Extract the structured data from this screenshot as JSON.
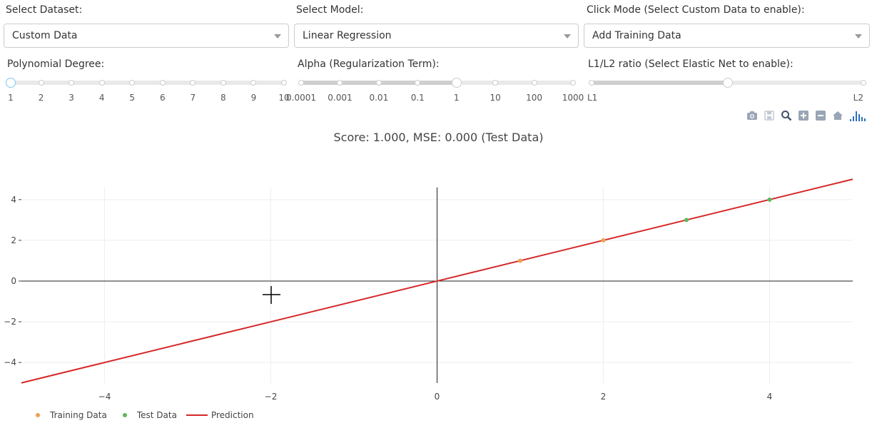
{
  "controls": {
    "dataset": {
      "label": "Select Dataset:",
      "value": "Custom Data"
    },
    "model": {
      "label": "Select Model:",
      "value": "Linear Regression"
    },
    "click_mode": {
      "label": "Click Mode (Select Custom Data to enable):",
      "value": "Add Training Data"
    }
  },
  "sliders": {
    "degree": {
      "label": "Polynomial Degree:",
      "marks": [
        "1",
        "2",
        "3",
        "4",
        "5",
        "6",
        "7",
        "8",
        "9",
        "10"
      ],
      "value_index": 0
    },
    "alpha": {
      "label": "Alpha (Regularization Term):",
      "marks": [
        "0.0001",
        "0.001",
        "0.01",
        "0.1",
        "1",
        "10",
        "100",
        "1000"
      ],
      "value_index": 4
    },
    "l1l2": {
      "label": "L1/L2 ratio (Select Elastic Net to enable):",
      "marks": [
        "L1",
        "L2"
      ],
      "value_fraction": 0.5
    }
  },
  "toolbar": {
    "icons": [
      "camera-icon",
      "save-icon",
      "zoom-icon",
      "zoom-in-icon",
      "zoom-out-icon",
      "home-icon",
      "plotly-logo-icon"
    ]
  },
  "score_text": "Score: 1.000, MSE: 0.000 (Test Data)",
  "legend": {
    "training": "Training Data",
    "test": "Test Data",
    "prediction": "Prediction"
  },
  "colors": {
    "training": "#f0a050",
    "test": "#5cb85c",
    "prediction": "#d62728",
    "accent": "#2f6fbf"
  },
  "chart_data": {
    "type": "scatter",
    "title": "",
    "xlabel": "",
    "ylabel": "",
    "xlim": [
      -5,
      5
    ],
    "ylim": [
      -5.5,
      5.5
    ],
    "x_ticks": [
      -4,
      -2,
      0,
      2,
      4
    ],
    "y_ticks": [
      -4,
      -2,
      0,
      2,
      4
    ],
    "grid": true,
    "legend_position": "bottom-left",
    "series": [
      {
        "name": "Training Data",
        "kind": "markers",
        "x": [
          1,
          2
        ],
        "y": [
          1,
          2
        ]
      },
      {
        "name": "Test Data",
        "kind": "markers",
        "x": [
          3,
          4
        ],
        "y": [
          3,
          4
        ]
      },
      {
        "name": "Prediction",
        "kind": "line",
        "x": [
          -5,
          5
        ],
        "y": [
          -5,
          5
        ]
      }
    ]
  }
}
